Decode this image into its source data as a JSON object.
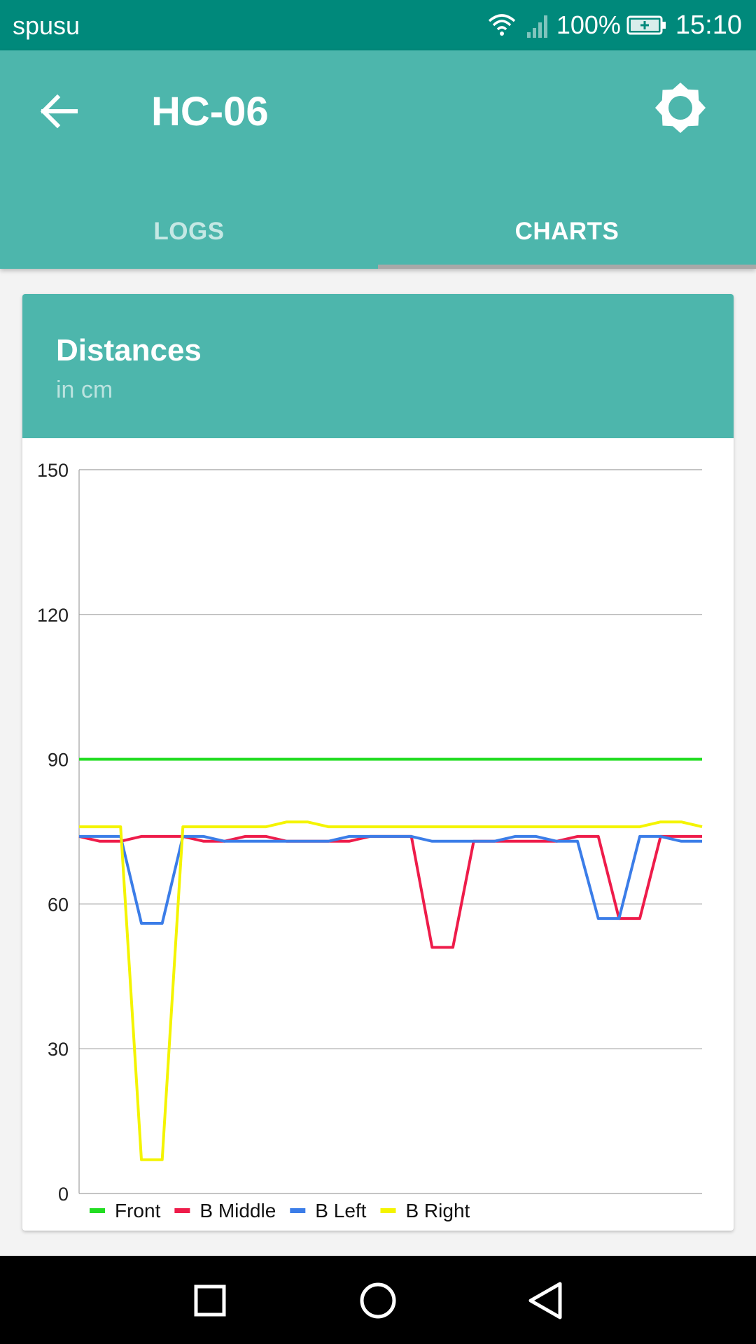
{
  "status_bar": {
    "carrier": "spusu",
    "battery_percent": "100%",
    "time": "15:10"
  },
  "app_bar": {
    "title": "HC-06",
    "tabs": [
      {
        "label": "LOGS",
        "active": false
      },
      {
        "label": "CHARTS",
        "active": true
      }
    ]
  },
  "card": {
    "title": "Distances",
    "subtitle": "in cm"
  },
  "chart_data": {
    "type": "line",
    "ylim": [
      0,
      150
    ],
    "yticks": [
      "0",
      "30",
      "60",
      "90",
      "120",
      "150"
    ],
    "grid": true,
    "legend_position": "bottom-left",
    "series": [
      {
        "name": "Front",
        "color": "#22dd22",
        "values": [
          90,
          90,
          90,
          90,
          90,
          90,
          90,
          90,
          90,
          90,
          90,
          90,
          90,
          90,
          90,
          90,
          90,
          90,
          90,
          90,
          90,
          90,
          90,
          90,
          90,
          90,
          90,
          90,
          90,
          90,
          90
        ]
      },
      {
        "name": "B Middle",
        "color": "#ee1c4a",
        "values": [
          74,
          73,
          73,
          74,
          74,
          74,
          73,
          73,
          74,
          74,
          73,
          73,
          73,
          73,
          74,
          74,
          74,
          51,
          51,
          73,
          73,
          73,
          73,
          73,
          74,
          74,
          57,
          57,
          74,
          74,
          74
        ]
      },
      {
        "name": "B Left",
        "color": "#3b7de8",
        "values": [
          74,
          74,
          74,
          56,
          56,
          74,
          74,
          73,
          73,
          73,
          73,
          73,
          73,
          74,
          74,
          74,
          74,
          73,
          73,
          73,
          73,
          74,
          74,
          73,
          73,
          57,
          57,
          74,
          74,
          73,
          73
        ]
      },
      {
        "name": "B Right",
        "color": "#f4f400",
        "values": [
          76,
          76,
          76,
          7,
          7,
          76,
          76,
          76,
          76,
          76,
          77,
          77,
          76,
          76,
          76,
          76,
          76,
          76,
          76,
          76,
          76,
          76,
          76,
          76,
          76,
          76,
          76,
          76,
          77,
          77,
          76
        ]
      }
    ]
  }
}
